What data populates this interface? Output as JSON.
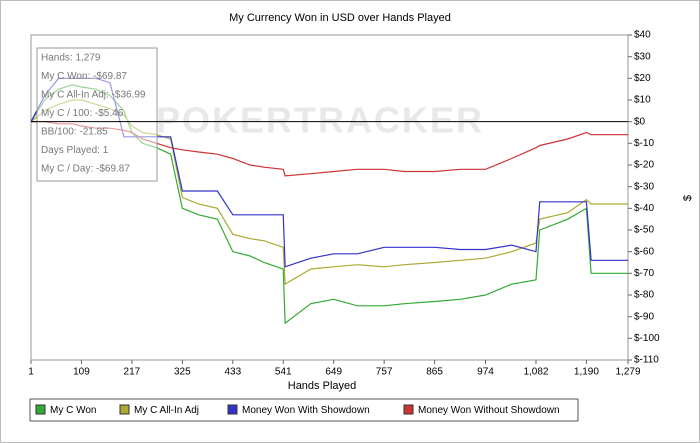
{
  "chart_data": {
    "type": "line",
    "title": "My Currency Won in USD over Hands Played",
    "x_label": "Hands Played",
    "y_label": "$",
    "watermark": "POKERTRACKER",
    "tooltip": [
      "Hands: 1,279",
      "My C Won: -$69.87",
      "My C All-In Adj: -$36.99",
      "My C / 100: -$5.46",
      "BB/100: -21.85",
      "Days Played: 1",
      "My C / Day: -$69.87"
    ],
    "x": [
      1,
      30,
      60,
      90,
      109,
      140,
      170,
      200,
      217,
      240,
      270,
      300,
      325,
      360,
      400,
      433,
      470,
      500,
      541,
      545,
      600,
      649,
      700,
      757,
      800,
      865,
      920,
      974,
      1030,
      1082,
      1090,
      1150,
      1190,
      1200,
      1240,
      1279
    ],
    "series": [
      {
        "name": "My C Won",
        "color": "#33aa33",
        "values": [
          0,
          10,
          15,
          17,
          16,
          15,
          12,
          5,
          -5,
          -10,
          -12,
          -15,
          -40,
          -43,
          -45,
          -60,
          -62,
          -65,
          -68,
          -93,
          -84,
          -82,
          -85,
          -85,
          -84,
          -83,
          -82,
          -80,
          -75,
          -73,
          -50,
          -45,
          -40,
          -70,
          -70,
          -70
        ]
      },
      {
        "name": "My C All-In Adj",
        "color": "#aaaa33",
        "values": [
          0,
          5,
          8,
          10,
          10,
          8,
          6,
          3,
          -2,
          -5,
          -6,
          -8,
          -35,
          -38,
          -40,
          -52,
          -54,
          -55,
          -58,
          -75,
          -68,
          -67,
          -66,
          -67,
          -66,
          -65,
          -64,
          -63,
          -60,
          -56,
          -45,
          -42,
          -36,
          -38,
          -38,
          -38
        ]
      },
      {
        "name": "Money Won With Showdown",
        "color": "#3333cc",
        "values": [
          0,
          12,
          20,
          20,
          20,
          20,
          18,
          -7,
          -7,
          -7,
          -7,
          -7,
          -32,
          -32,
          -32,
          -43,
          -43,
          -43,
          -43,
          -67,
          -63,
          -61,
          -61,
          -58,
          -58,
          -58,
          -59,
          -59,
          -57,
          -60,
          -37,
          -37,
          -37,
          -64,
          -64,
          -64
        ]
      },
      {
        "name": "Money Won Without Showdown",
        "color": "#cc3333",
        "values": [
          0,
          0,
          -1,
          -1,
          -2,
          -3,
          -3,
          -4,
          -5,
          -8,
          -10,
          -12,
          -13,
          -14,
          -15,
          -17,
          -20,
          -21,
          -22,
          -25,
          -24,
          -23,
          -22,
          -22,
          -23,
          -23,
          -22,
          -22,
          -17,
          -12,
          -11,
          -8,
          -5,
          -6,
          -6,
          -6
        ]
      }
    ],
    "xlim": [
      1,
      1279
    ],
    "xticks": [
      1,
      109,
      217,
      325,
      433,
      541,
      649,
      757,
      865,
      974,
      {
        "value": 1082,
        "label": "1,082"
      },
      {
        "value": 1190,
        "label": "1,190"
      },
      {
        "value": 1279,
        "label": "1,279"
      }
    ],
    "ylim": [
      -110,
      40
    ],
    "yticks": [
      {
        "value": 40,
        "label": "$40"
      },
      {
        "value": 30,
        "label": "$30"
      },
      {
        "value": 20,
        "label": "$20"
      },
      {
        "value": 10,
        "label": "$10"
      },
      {
        "value": 0,
        "label": "$0"
      },
      {
        "value": -10,
        "label": "$-10"
      },
      {
        "value": -20,
        "label": "$-20"
      },
      {
        "value": -30,
        "label": "$-30"
      },
      {
        "value": -40,
        "label": "$-40"
      },
      {
        "value": -50,
        "label": "$-50"
      },
      {
        "value": -60,
        "label": "$-60"
      },
      {
        "value": -70,
        "label": "$-70"
      },
      {
        "value": -80,
        "label": "$-80"
      },
      {
        "value": -90,
        "label": "$-90"
      },
      {
        "value": -100,
        "label": "$-100"
      },
      {
        "value": -110,
        "label": "$-110"
      }
    ],
    "zero_line": true
  }
}
